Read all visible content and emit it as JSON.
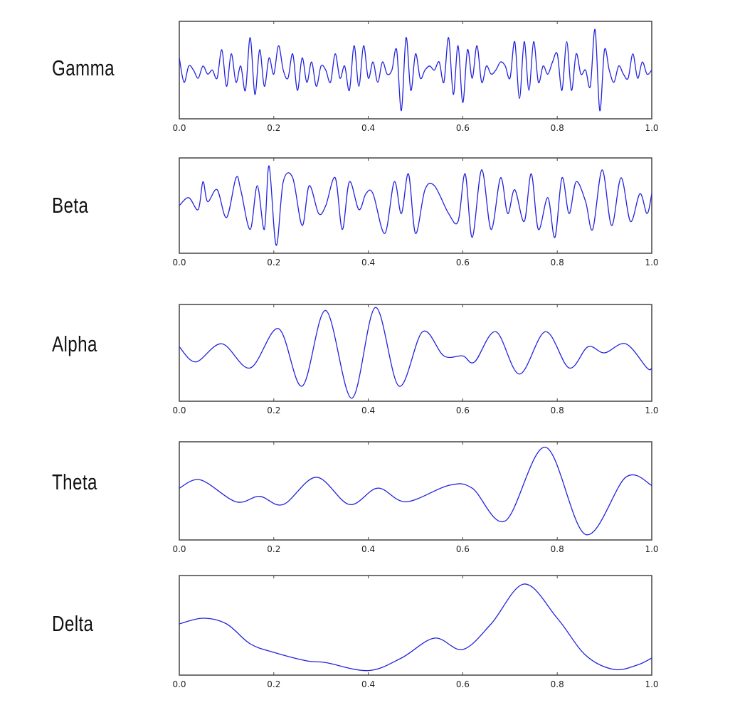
{
  "chart_data": [
    {
      "type": "line",
      "title": "Gamma",
      "xlabel": "",
      "ylabel": "",
      "xlim": [
        0.0,
        1.0
      ],
      "xticks": [
        "0.0",
        "0.2",
        "0.4",
        "0.6",
        "0.8",
        "1.0"
      ],
      "grid": false,
      "description": "high-frequency noisy oscillation, roughly 60+ cycles across window",
      "x": [
        0.0,
        0.01,
        0.02,
        0.03,
        0.04,
        0.05,
        0.06,
        0.07,
        0.08,
        0.09,
        0.1,
        0.11,
        0.12,
        0.13,
        0.14,
        0.15,
        0.16,
        0.17,
        0.18,
        0.19,
        0.2,
        0.21,
        0.22,
        0.23,
        0.24,
        0.25,
        0.26,
        0.27,
        0.28,
        0.29,
        0.3,
        0.31,
        0.32,
        0.33,
        0.34,
        0.35,
        0.36,
        0.37,
        0.38,
        0.39,
        0.4,
        0.41,
        0.42,
        0.43,
        0.44,
        0.45,
        0.46,
        0.47,
        0.48,
        0.49,
        0.5,
        0.51,
        0.52,
        0.53,
        0.54,
        0.55,
        0.56,
        0.57,
        0.58,
        0.59,
        0.6,
        0.61,
        0.62,
        0.63,
        0.64,
        0.65,
        0.66,
        0.67,
        0.68,
        0.69,
        0.7,
        0.71,
        0.72,
        0.73,
        0.74,
        0.75,
        0.76,
        0.77,
        0.78,
        0.79,
        0.8,
        0.81,
        0.82,
        0.83,
        0.84,
        0.85,
        0.86,
        0.87,
        0.88,
        0.89,
        0.9,
        0.91,
        0.92,
        0.93,
        0.94,
        0.95,
        0.96,
        0.97,
        0.98,
        0.99,
        1.0
      ],
      "values": [
        0.3,
        -0.3,
        0.1,
        0.0,
        -0.2,
        0.1,
        -0.1,
        0.0,
        -0.2,
        0.5,
        -0.4,
        0.4,
        -0.3,
        0.1,
        -0.5,
        0.8,
        -0.6,
        0.5,
        -0.4,
        0.3,
        -0.1,
        0.6,
        0.0,
        -0.2,
        0.4,
        -0.5,
        0.3,
        -0.3,
        0.2,
        -0.4,
        0.1,
        0.0,
        -0.3,
        0.4,
        -0.2,
        0.1,
        -0.5,
        0.6,
        -0.4,
        0.6,
        -0.2,
        0.2,
        -0.3,
        0.2,
        -0.1,
        0.0,
        0.5,
        -1.0,
        0.8,
        -0.5,
        0.4,
        -0.2,
        0.0,
        0.1,
        0.0,
        0.2,
        -0.3,
        0.8,
        -0.6,
        0.6,
        -0.8,
        0.5,
        -0.2,
        0.6,
        -0.3,
        0.1,
        -0.1,
        0.0,
        0.2,
        0.1,
        -0.2,
        0.7,
        -0.7,
        0.7,
        -0.5,
        0.7,
        -0.3,
        0.1,
        -0.1,
        0.2,
        0.4,
        -0.5,
        0.7,
        -0.5,
        0.4,
        -0.1,
        0.0,
        -0.4,
        1.0,
        -1.0,
        0.5,
        0.0,
        -0.3,
        0.1,
        -0.1,
        -0.2,
        0.4,
        -0.2,
        0.2,
        -0.1,
        0.0
      ],
      "ylim": [
        -1.2,
        1.2
      ]
    },
    {
      "type": "line",
      "title": "Beta",
      "xlabel": "",
      "ylabel": "",
      "xlim": [
        0.0,
        1.0
      ],
      "xticks": [
        "0.0",
        "0.2",
        "0.4",
        "0.6",
        "0.8",
        "1.0"
      ],
      "grid": false,
      "description": "medium-high frequency oscillation, roughly 25 cycles across window",
      "x": [
        0.0,
        0.02,
        0.04,
        0.05,
        0.06,
        0.08,
        0.1,
        0.12,
        0.13,
        0.15,
        0.165,
        0.18,
        0.19,
        0.205,
        0.22,
        0.24,
        0.26,
        0.275,
        0.295,
        0.31,
        0.33,
        0.345,
        0.36,
        0.38,
        0.395,
        0.41,
        0.435,
        0.455,
        0.47,
        0.485,
        0.5,
        0.52,
        0.54,
        0.57,
        0.59,
        0.605,
        0.62,
        0.64,
        0.66,
        0.68,
        0.695,
        0.71,
        0.73,
        0.745,
        0.76,
        0.78,
        0.795,
        0.81,
        0.825,
        0.84,
        0.86,
        0.875,
        0.895,
        0.915,
        0.935,
        0.955,
        0.975,
        0.99,
        1.0
      ],
      "values": [
        0.0,
        0.2,
        -0.1,
        0.6,
        0.1,
        0.4,
        -0.3,
        0.7,
        0.4,
        -0.6,
        0.5,
        -0.6,
        1.0,
        -1.0,
        0.6,
        0.7,
        -0.5,
        0.5,
        -0.2,
        0.0,
        0.7,
        -0.6,
        0.6,
        -0.1,
        0.3,
        0.3,
        -0.7,
        0.6,
        -0.2,
        0.8,
        -0.7,
        0.4,
        0.5,
        -0.2,
        -0.4,
        0.8,
        -0.8,
        0.9,
        -0.6,
        0.7,
        -0.2,
        0.4,
        -0.4,
        0.8,
        -0.6,
        0.2,
        -0.8,
        0.7,
        -0.2,
        0.6,
        0.1,
        -0.6,
        0.9,
        -0.5,
        0.7,
        -0.4,
        0.3,
        -0.2,
        0.3
      ],
      "ylim": [
        -1.2,
        1.2
      ]
    },
    {
      "type": "line",
      "title": "Alpha",
      "xlabel": "",
      "ylabel": "",
      "xlim": [
        0.0,
        1.0
      ],
      "xticks": [
        "0.0",
        "0.2",
        "0.4",
        "0.6",
        "0.8",
        "1.0"
      ],
      "grid": false,
      "description": "smooth ~10 cycle oscillation with amplitude burst peaking near x=0.3-0.42",
      "x": [
        0.0,
        0.035,
        0.09,
        0.15,
        0.21,
        0.26,
        0.31,
        0.365,
        0.415,
        0.465,
        0.515,
        0.56,
        0.6,
        0.625,
        0.67,
        0.72,
        0.775,
        0.825,
        0.865,
        0.9,
        0.945,
        0.99,
        1.0
      ],
      "values": [
        0.05,
        -0.2,
        0.1,
        -0.3,
        0.35,
        -0.6,
        0.65,
        -0.8,
        0.7,
        -0.6,
        0.3,
        -0.1,
        -0.1,
        -0.2,
        0.3,
        -0.4,
        0.3,
        -0.3,
        0.05,
        -0.05,
        0.1,
        -0.3,
        -0.3
      ],
      "ylim": [
        -0.85,
        0.75
      ]
    },
    {
      "type": "line",
      "title": "Theta",
      "xlabel": "",
      "ylabel": "",
      "xlim": [
        0.0,
        1.0
      ],
      "xticks": [
        "0.0",
        "0.2",
        "0.4",
        "0.6",
        "0.8",
        "1.0"
      ],
      "grid": false,
      "description": "smooth ~6 cycle oscillation with large swing around x=0.7-0.86",
      "x": [
        0.0,
        0.045,
        0.12,
        0.17,
        0.22,
        0.29,
        0.36,
        0.42,
        0.48,
        0.57,
        0.62,
        0.69,
        0.775,
        0.86,
        0.945,
        1.0
      ],
      "values": [
        0.0,
        0.15,
        -0.25,
        -0.15,
        -0.3,
        0.2,
        -0.3,
        0.0,
        -0.25,
        0.05,
        0.0,
        -0.6,
        0.75,
        -0.85,
        0.2,
        0.05
      ],
      "ylim": [
        -0.95,
        0.85
      ]
    },
    {
      "type": "line",
      "title": "Delta",
      "xlabel": "",
      "ylabel": "",
      "xlim": [
        0.0,
        1.0
      ],
      "xticks": [
        "0.0",
        "0.2",
        "0.4",
        "0.6",
        "0.8",
        "1.0"
      ],
      "grid": false,
      "description": "slow wave: plateau at start, trough near 0.4, small bump 0.55, large peak near 0.73, trough near 0.92",
      "x": [
        0.0,
        0.05,
        0.1,
        0.15,
        0.2,
        0.27,
        0.31,
        0.4,
        0.47,
        0.54,
        0.6,
        0.66,
        0.73,
        0.8,
        0.86,
        0.92,
        0.97,
        1.0
      ],
      "values": [
        0.1,
        0.2,
        0.1,
        -0.25,
        -0.4,
        -0.55,
        -0.58,
        -0.72,
        -0.5,
        -0.15,
        -0.35,
        0.1,
        0.8,
        0.2,
        -0.45,
        -0.7,
        -0.62,
        -0.5
      ],
      "ylim": [
        -0.8,
        0.95
      ]
    }
  ],
  "panels": [
    {
      "label": "Gamma"
    },
    {
      "label": "Beta"
    },
    {
      "label": "Alpha"
    },
    {
      "label": "Theta"
    },
    {
      "label": "Delta"
    }
  ],
  "colors": {
    "trace": "#2222dd",
    "frame": "#444444"
  }
}
